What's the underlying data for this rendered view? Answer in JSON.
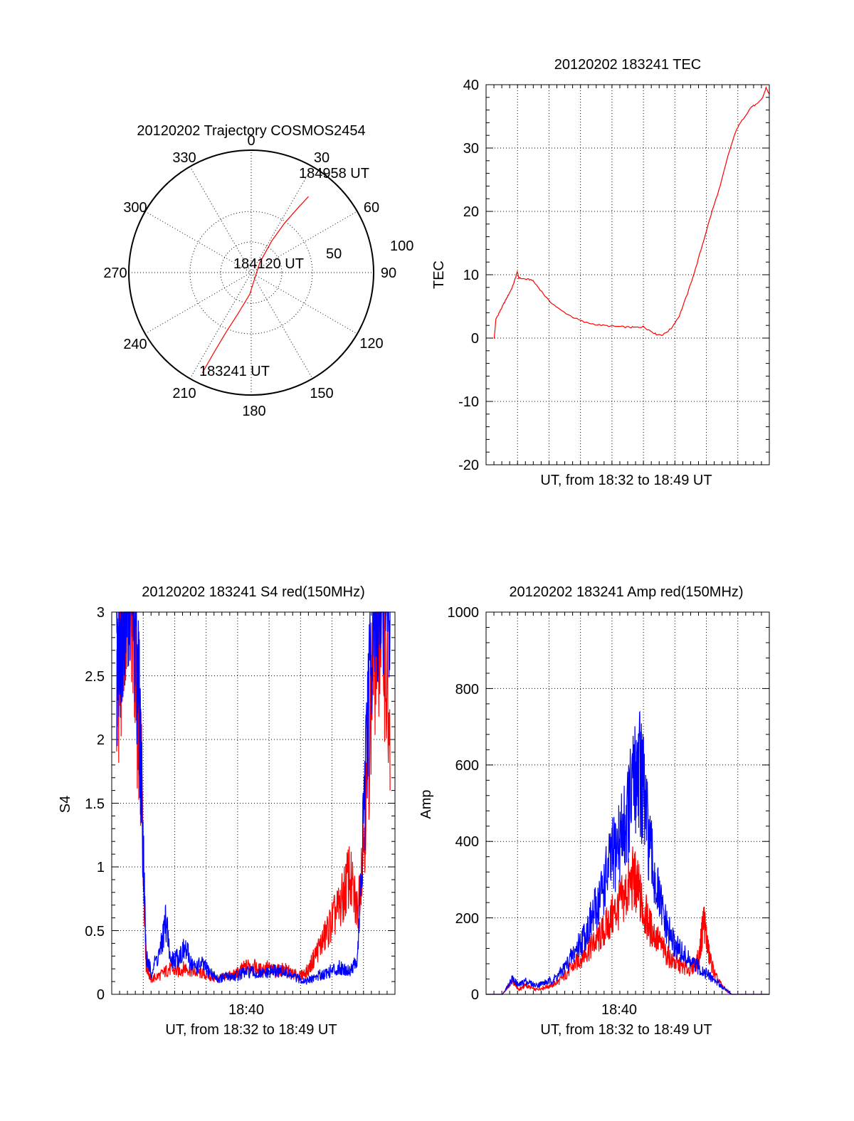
{
  "chart_data": [
    {
      "type": "polar",
      "title": "20120202 Trajectory COSMOS2454",
      "angle_labels": [
        "0",
        "30",
        "60",
        "90",
        "120",
        "150",
        "180",
        "210",
        "240",
        "270",
        "300",
        "330"
      ],
      "radius_labels": [
        "50",
        "100"
      ],
      "point_labels": [
        "184958 UT",
        "184120 UT",
        "183241 UT"
      ],
      "trajectory": {
        "color": "#ff0000",
        "points": [
          {
            "az": 206,
            "el": 8
          },
          {
            "az": 205,
            "el": 25
          },
          {
            "az": 203,
            "el": 42
          },
          {
            "az": 198,
            "el": 58
          },
          {
            "az": 184,
            "el": 74
          },
          {
            "az": 130,
            "el": 86
          },
          {
            "az": 40,
            "el": 80
          },
          {
            "az": 33,
            "el": 62
          },
          {
            "az": 34,
            "el": 46
          },
          {
            "az": 36,
            "el": 30
          },
          {
            "az": 37,
            "el": 20
          }
        ]
      }
    },
    {
      "type": "line",
      "title": "20120202 183241 TEC",
      "xlabel": "UT, from 18:32 to 18:49 UT",
      "ylabel": "TEC",
      "xlim": [
        0,
        17.3
      ],
      "ylim": [
        -20,
        40
      ],
      "yticks": [
        "-20",
        "-10",
        "0",
        "10",
        "20",
        "30",
        "40"
      ],
      "series": [
        {
          "color": "#ff0000",
          "x": [
            0.5,
            0.6,
            0.8,
            1.0,
            1.2,
            1.4,
            1.6,
            1.8,
            1.9,
            2.0,
            2.4,
            2.8,
            3.2,
            3.8,
            4.5,
            5.3,
            6.0,
            6.8,
            7.5,
            8.2,
            8.8,
            9.2,
            9.6,
            10.0,
            10.4,
            10.8,
            11.3,
            11.8,
            12.3,
            12.8,
            13.3,
            13.8,
            14.3,
            14.8,
            15.3,
            15.8,
            16.2,
            16.6,
            16.9,
            17.1,
            17.3
          ],
          "y": [
            0,
            3,
            4,
            5,
            6,
            7,
            8,
            9.5,
            10.5,
            9.5,
            9.3,
            9.2,
            8,
            6,
            4.5,
            3.3,
            2.5,
            2.1,
            1.9,
            1.8,
            1.7,
            1.7,
            1.8,
            1.2,
            0.6,
            0.5,
            1.5,
            3.5,
            7,
            11,
            15.5,
            20,
            24,
            29,
            33,
            35,
            36.5,
            37,
            38,
            39.5,
            38.5
          ]
        }
      ]
    },
    {
      "type": "line",
      "title": "20120202 183241 S4 red(150MHz)",
      "xlabel": "UT, from 18:32 to 18:49 UT",
      "ylabel": "S4",
      "xlim": [
        0,
        17.3
      ],
      "ylim": [
        0,
        3
      ],
      "xticks": [
        {
          "value": 8,
          "label": "18:40"
        }
      ],
      "yticks": [
        "0",
        "0.5",
        "1",
        "1.5",
        "2",
        "2.5",
        "3"
      ],
      "series": [
        {
          "color": "#ff0000",
          "x": [
            0.3,
            0.6,
            0.9,
            1.2,
            1.5,
            1.8,
            2.1,
            2.4,
            3.0,
            3.5,
            4.0,
            4.5,
            5.0,
            5.5,
            6.0,
            6.5,
            7.0,
            7.5,
            8.0,
            8.5,
            9.0,
            9.5,
            10.0,
            10.5,
            11.0,
            11.5,
            12.0,
            12.5,
            13.0,
            13.5,
            14.0,
            14.5,
            15.0,
            15.5,
            16.0,
            16.5,
            17.0
          ],
          "y": [
            2.0,
            2.4,
            2.9,
            3.0,
            2.0,
            1.5,
            0.2,
            0.1,
            0.13,
            0.17,
            0.15,
            0.18,
            0.15,
            0.14,
            0.12,
            0.1,
            0.12,
            0.13,
            0.17,
            0.2,
            0.16,
            0.18,
            0.15,
            0.17,
            0.14,
            0.12,
            0.16,
            0.28,
            0.38,
            0.5,
            0.6,
            0.8,
            0.55,
            1.2,
            2.3,
            2.8,
            1.6
          ]
        },
        {
          "color": "#0000ff",
          "x": [
            0.3,
            0.6,
            0.9,
            1.2,
            1.5,
            1.8,
            2.1,
            2.4,
            3.0,
            3.3,
            3.6,
            4.0,
            4.5,
            5.0,
            5.5,
            6.0,
            6.5,
            7.0,
            7.5,
            8.0,
            8.5,
            9.0,
            9.5,
            10.0,
            10.5,
            11.0,
            11.5,
            12.0,
            12.5,
            13.0,
            13.5,
            14.0,
            14.5,
            15.0,
            15.5,
            16.0,
            16.5,
            17.0
          ],
          "y": [
            2.2,
            2.7,
            3.0,
            3.0,
            2.5,
            1.5,
            0.25,
            0.15,
            0.3,
            0.5,
            0.22,
            0.25,
            0.3,
            0.18,
            0.2,
            0.15,
            0.1,
            0.12,
            0.12,
            0.14,
            0.15,
            0.13,
            0.14,
            0.16,
            0.15,
            0.12,
            0.1,
            0.09,
            0.12,
            0.14,
            0.16,
            0.18,
            0.16,
            0.22,
            1.4,
            2.7,
            3.0,
            3.0
          ]
        }
      ]
    },
    {
      "type": "line",
      "title": "20120202 183241 Amp red(150MHz)",
      "xlabel": "UT, from 18:32 to 18:49 UT",
      "ylabel": "Amp",
      "xlim": [
        0,
        17.3
      ],
      "ylim": [
        0,
        1000
      ],
      "xticks": [
        {
          "value": 8,
          "label": "18:40"
        }
      ],
      "yticks": [
        "0",
        "200",
        "400",
        "600",
        "800",
        "1000"
      ],
      "series": [
        {
          "color": "#ff0000",
          "x": [
            0,
            1.0,
            1.6,
            2.0,
            2.4,
            3.0,
            3.5,
            4.0,
            4.5,
            5.0,
            5.5,
            6.0,
            6.5,
            7.0,
            7.5,
            8.0,
            8.5,
            9.0,
            9.3,
            9.6,
            10.0,
            10.5,
            11.0,
            11.5,
            12.0,
            12.5,
            13.0,
            13.3,
            13.6,
            14.0,
            14.5,
            15.0,
            17.3
          ],
          "y": [
            0,
            0,
            30,
            10,
            20,
            10,
            15,
            20,
            30,
            50,
            70,
            90,
            110,
            130,
            160,
            190,
            220,
            260,
            230,
            190,
            150,
            120,
            90,
            70,
            60,
            55,
            80,
            170,
            90,
            40,
            15,
            0,
            0
          ]
        },
        {
          "color": "#0000ff",
          "x": [
            0,
            1.0,
            1.6,
            2.0,
            2.4,
            3.0,
            3.5,
            4.0,
            4.5,
            5.0,
            5.5,
            6.0,
            6.5,
            7.0,
            7.5,
            8.0,
            8.5,
            9.0,
            9.3,
            9.6,
            10.0,
            10.5,
            11.0,
            11.5,
            12.0,
            12.5,
            13.0,
            13.5,
            14.0,
            14.5,
            15.0,
            17.3
          ],
          "y": [
            0,
            0,
            35,
            20,
            30,
            20,
            25,
            30,
            45,
            70,
            100,
            130,
            170,
            220,
            280,
            330,
            380,
            460,
            520,
            450,
            320,
            220,
            150,
            110,
            90,
            70,
            60,
            45,
            30,
            15,
            0,
            0
          ]
        }
      ]
    }
  ]
}
